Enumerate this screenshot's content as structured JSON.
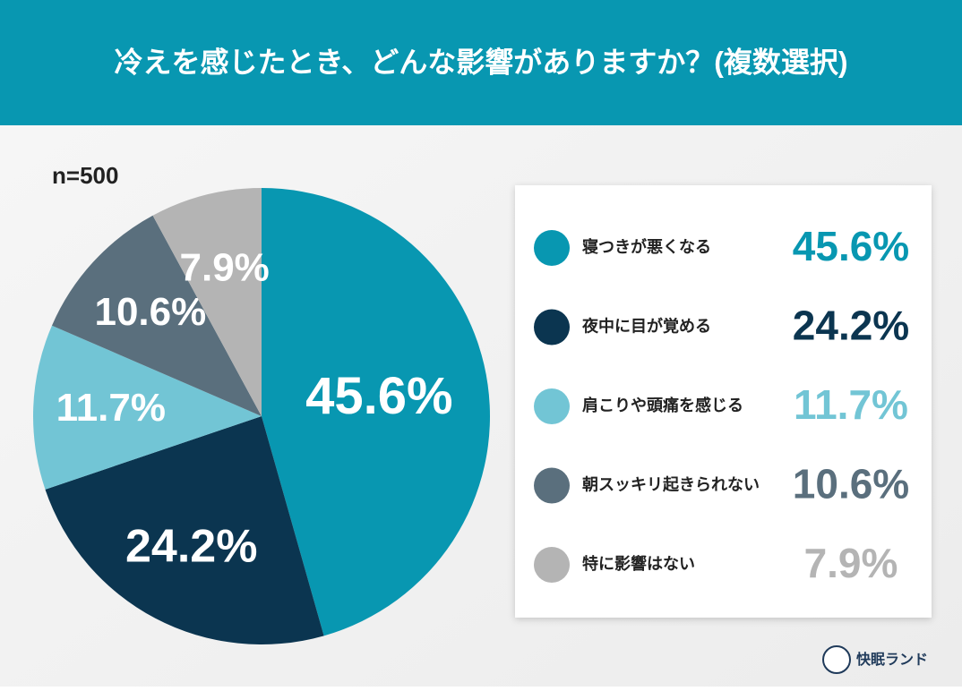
{
  "chart_data": {
    "type": "pie",
    "title": "冷えを感じたとき、どんな影響がありますか？(複数選択)",
    "note": "n=500",
    "brand": "快眠ランド",
    "categories": [
      "寝つきが悪くなる",
      "夜中に目が覚める",
      "肩こりや頭痛を感じる",
      "朝スッキリ起きられない",
      "特に影響はない"
    ],
    "values": [
      45.6,
      24.2,
      11.7,
      10.6,
      7.9
    ],
    "value_labels": [
      "45.6%",
      "24.2%",
      "11.7%",
      "10.6%",
      "7.9%"
    ],
    "colors": [
      "#0897b1",
      "#0b3550",
      "#72c5d5",
      "#5a6f7d",
      "#b4b4b4"
    ],
    "legend": "right"
  }
}
